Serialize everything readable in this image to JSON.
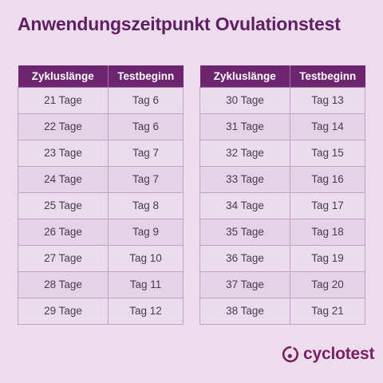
{
  "title": "Anwendungszeitpunkt Ovulationstest",
  "table_left": {
    "headers": [
      "Zykluslänge",
      "Testbeginn"
    ],
    "rows": [
      [
        "21 Tage",
        "Tag 6"
      ],
      [
        "22 Tage",
        "Tag 6"
      ],
      [
        "23 Tage",
        "Tag 7"
      ],
      [
        "24 Tage",
        "Tag 7"
      ],
      [
        "25 Tage",
        "Tag 8"
      ],
      [
        "26 Tage",
        "Tag 9"
      ],
      [
        "27 Tage",
        "Tag 10"
      ],
      [
        "28 Tage",
        "Tag 11"
      ],
      [
        "29 Tage",
        "Tag 12"
      ]
    ]
  },
  "table_right": {
    "headers": [
      "Zykluslänge",
      "Testbeginn"
    ],
    "rows": [
      [
        "30 Tage",
        "Tag 13"
      ],
      [
        "31 Tage",
        "Tag 14"
      ],
      [
        "32 Tage",
        "Tag 15"
      ],
      [
        "33 Tage",
        "Tag 16"
      ],
      [
        "34 Tage",
        "Tag 17"
      ],
      [
        "35 Tage",
        "Tag 18"
      ],
      [
        "36 Tage",
        "Tag 19"
      ],
      [
        "37 Tage",
        "Tag 20"
      ],
      [
        "38 Tage",
        "Tag 21"
      ]
    ]
  },
  "logo": {
    "text": "cyclotest",
    "icon": "cyclotest-logo-icon"
  },
  "colors": {
    "background": "#ecdcec",
    "header": "#6d2570",
    "title": "#5e1f63",
    "brand": "#7a1f63"
  }
}
